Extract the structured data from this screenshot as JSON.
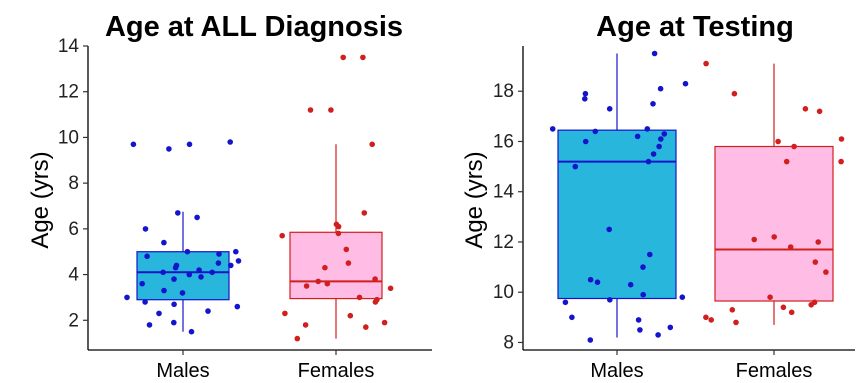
{
  "chart_data": [
    {
      "type": "box",
      "title": "Age at ALL Diagnosis",
      "xlabel": "",
      "ylabel": "Age (yrs)",
      "ylim": [
        0.7,
        14
      ],
      "yticks": [
        2,
        4,
        6,
        8,
        10,
        12,
        14
      ],
      "categories": [
        "Males",
        "Females"
      ],
      "boxes": [
        {
          "category": "Males",
          "whisker_low": 1.5,
          "q1": 2.9,
          "median": 4.1,
          "q3": 5.0,
          "whisker_high": 6.75,
          "fill": "#29b6dc",
          "line": "#1414cc",
          "points": [
            9.8,
            9.7,
            9.7,
            9.5,
            6.7,
            6.5,
            6.0,
            5.4,
            5.0,
            5.0,
            4.9,
            4.8,
            4.6,
            4.5,
            4.4,
            4.4,
            4.3,
            4.2,
            4.1,
            4.1,
            4.0,
            3.9,
            3.8,
            3.6,
            3.3,
            3.2,
            3.0,
            2.8,
            2.7,
            2.6,
            2.4,
            2.3,
            1.9,
            1.8,
            1.5
          ]
        },
        {
          "category": "Females",
          "whisker_low": 1.2,
          "q1": 2.95,
          "median": 3.7,
          "q3": 5.85,
          "whisker_high": 9.7,
          "fill": "#ffbde6",
          "line": "#d11f1f",
          "points": [
            13.5,
            13.5,
            11.2,
            11.2,
            9.7,
            6.7,
            6.2,
            6.1,
            5.8,
            5.7,
            5.1,
            4.5,
            4.3,
            3.8,
            3.7,
            3.6,
            3.5,
            3.4,
            3.0,
            2.9,
            2.8,
            2.3,
            2.2,
            1.9,
            1.8,
            1.7,
            1.2
          ]
        }
      ]
    },
    {
      "type": "box",
      "title": "Age at Testing",
      "xlabel": "",
      "ylabel": "Age (yrs)",
      "ylim": [
        7.7,
        19.8
      ],
      "yticks": [
        8,
        10,
        12,
        14,
        16,
        18
      ],
      "categories": [
        "Males",
        "Females"
      ],
      "boxes": [
        {
          "category": "Males",
          "whisker_low": 8.2,
          "q1": 9.75,
          "median": 15.2,
          "q3": 16.45,
          "whisker_high": 19.5,
          "fill": "#29b6dc",
          "line": "#1414cc",
          "points": [
            19.5,
            18.3,
            18.1,
            17.9,
            17.7,
            17.5,
            17.3,
            16.5,
            16.5,
            16.4,
            16.3,
            16.2,
            16.1,
            16.0,
            15.8,
            15.5,
            15.2,
            15.0,
            12.5,
            11.5,
            11.0,
            10.5,
            10.4,
            10.3,
            9.9,
            9.8,
            9.7,
            9.6,
            9.0,
            8.9,
            8.6,
            8.5,
            8.3,
            8.1
          ]
        },
        {
          "category": "Females",
          "whisker_low": 8.7,
          "q1": 9.65,
          "median": 11.7,
          "q3": 15.8,
          "whisker_high": 19.1,
          "fill": "#ffbde6",
          "line": "#d11f1f",
          "points": [
            19.1,
            17.9,
            17.3,
            17.2,
            16.1,
            16.0,
            15.8,
            15.2,
            15.2,
            12.2,
            12.1,
            12.0,
            11.8,
            11.2,
            10.8,
            9.8,
            9.6,
            9.5,
            9.4,
            9.3,
            9.2,
            9.0,
            8.9,
            8.8
          ]
        }
      ]
    }
  ]
}
